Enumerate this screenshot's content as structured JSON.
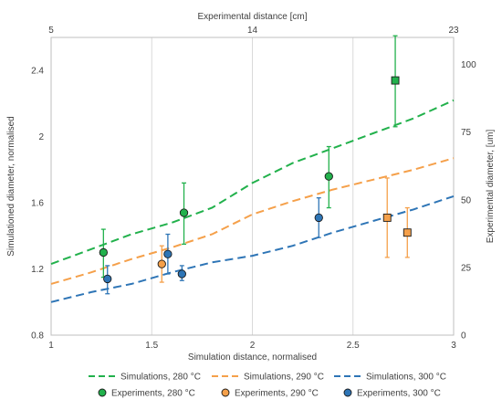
{
  "chart_data": {
    "type": "line",
    "bottom_axis": {
      "label": "Simulation distance, normalised",
      "range": [
        1,
        3
      ],
      "ticks": [
        "1",
        "1.5",
        "2",
        "2.5",
        "3"
      ],
      "tick_values": [
        1,
        1.5,
        2,
        2.5,
        3
      ]
    },
    "left_axis": {
      "label": "Simulationed diameter, normalised",
      "range": [
        0.8,
        2.6
      ],
      "ticks": [
        "0.8",
        "1.2",
        "1.6",
        "2",
        "2.4"
      ],
      "tick_values": [
        0.8,
        1.2,
        1.6,
        2.0,
        2.4
      ]
    },
    "top_axis": {
      "label": "Experimental distance [cm]",
      "range": [
        5,
        23
      ],
      "ticks": [
        "5",
        "14",
        "23"
      ],
      "tick_values": [
        5,
        14,
        23
      ]
    },
    "right_axis": {
      "label": "Experimental diameter, [um]",
      "range": [
        0,
        110
      ],
      "ticks": [
        "0",
        "25",
        "50",
        "75",
        "100"
      ],
      "tick_values": [
        0,
        25,
        50,
        75,
        100
      ]
    },
    "grid": "vertical",
    "legend_position": "bottom",
    "series": [
      {
        "name": "Simulations, 280 °C",
        "kind": "line",
        "color": "#22b14c",
        "x": [
          1.0,
          1.2,
          1.4,
          1.6,
          1.8,
          2.0,
          2.2,
          2.4,
          2.6,
          2.8,
          3.0
        ],
        "y": [
          1.23,
          1.32,
          1.41,
          1.48,
          1.57,
          1.72,
          1.84,
          1.93,
          2.02,
          2.11,
          2.22
        ]
      },
      {
        "name": "Simulations, 290 °C",
        "kind": "line",
        "color": "#f5a04a",
        "x": [
          1.0,
          1.2,
          1.4,
          1.6,
          1.8,
          2.0,
          2.2,
          2.4,
          2.6,
          2.8,
          3.0
        ],
        "y": [
          1.11,
          1.18,
          1.26,
          1.33,
          1.41,
          1.53,
          1.61,
          1.68,
          1.74,
          1.8,
          1.87
        ]
      },
      {
        "name": "Simulations, 300 °C",
        "kind": "line",
        "color": "#2e75b6",
        "x": [
          1.0,
          1.2,
          1.4,
          1.6,
          1.8,
          2.0,
          2.2,
          2.4,
          2.6,
          2.8,
          3.0
        ],
        "y": [
          1.0,
          1.06,
          1.11,
          1.18,
          1.24,
          1.28,
          1.34,
          1.42,
          1.49,
          1.56,
          1.64
        ]
      },
      {
        "name": "Experiments, 280 °C",
        "kind": "points",
        "color": "#22b14c",
        "x": [
          1.26,
          1.66,
          2.38,
          2.71
        ],
        "y": [
          1.3,
          1.54,
          1.76,
          2.34
        ],
        "err_low": [
          1.15,
          1.35,
          1.57,
          2.06
        ],
        "err_high": [
          1.44,
          1.72,
          1.94,
          2.61
        ],
        "shape": [
          "circle",
          "circle",
          "circle",
          "square"
        ]
      },
      {
        "name": "Experiments, 290 °C",
        "kind": "points",
        "color": "#f5a04a",
        "x": [
          1.55,
          2.67,
          2.77
        ],
        "y": [
          1.23,
          1.51,
          1.42
        ],
        "err_low": [
          1.12,
          1.27,
          1.27
        ],
        "err_high": [
          1.34,
          1.75,
          1.57
        ],
        "shape": [
          "circle",
          "square",
          "square"
        ]
      },
      {
        "name": "Experiments, 300 °C",
        "kind": "points",
        "color": "#2e75b6",
        "x": [
          1.28,
          1.58,
          1.65,
          2.33
        ],
        "y": [
          1.14,
          1.29,
          1.17,
          1.51
        ],
        "err_low": [
          1.05,
          1.17,
          1.13,
          1.39
        ],
        "err_high": [
          1.22,
          1.41,
          1.22,
          1.63
        ],
        "shape": [
          "circle",
          "circle",
          "circle",
          "circle"
        ]
      }
    ]
  }
}
